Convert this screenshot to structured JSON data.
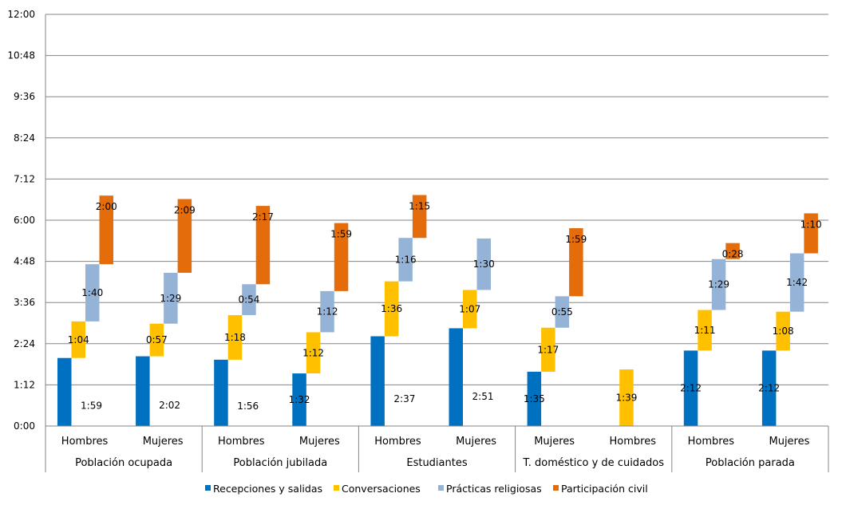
{
  "chart_data": {
    "type": "bar",
    "subtype": "floating-stacked (waterfall-style)",
    "title": "",
    "xlabel": "",
    "ylabel": "",
    "y_unit": "h:mm",
    "ylim_minutes": [
      0,
      720
    ],
    "y_ticks": [
      "0:00",
      "1:12",
      "2:24",
      "3:36",
      "4:48",
      "6:00",
      "7:12",
      "8:24",
      "9:36",
      "10:48",
      "12:00"
    ],
    "grid": true,
    "legend_position": "bottom",
    "groups": [
      {
        "label": "Población ocupada",
        "categories": [
          "Hombres",
          "Mujeres"
        ]
      },
      {
        "label": "Población jubilada",
        "categories": [
          "Hombres",
          "Mujeres"
        ]
      },
      {
        "label": "Estudiantes",
        "categories": [
          "Hombres",
          "Mujeres"
        ]
      },
      {
        "label": "T. doméstico y de cuidados",
        "categories": [
          "Mujeres",
          "Hombres"
        ]
      },
      {
        "label": "Población parada",
        "categories": [
          "Hombres",
          "Mujeres"
        ]
      }
    ],
    "series": [
      {
        "name": "Recepciones y salidas",
        "color": "#0070C0",
        "values": [
          "1:59",
          "2:02",
          "1:56",
          "1:32",
          "2:37",
          "2:51",
          "1:35",
          null,
          "2:12",
          "2:12"
        ]
      },
      {
        "name": "Conversaciones",
        "color": "#FFC000",
        "values": [
          "1:04",
          "0:57",
          "1:18",
          "1:12",
          "1:36",
          "1:07",
          "1:17",
          "1:39",
          "1:11",
          "1:08"
        ]
      },
      {
        "name": "Prácticas religiosas",
        "color": "#95B3D7",
        "values": [
          "1:40",
          "1:29",
          "0:54",
          "1:12",
          "1:16",
          "1:30",
          "0:55",
          null,
          "1:29",
          "1:42"
        ]
      },
      {
        "name": "Participación civil",
        "color": "#E46C0A",
        "values": [
          "2:00",
          "2:09",
          "2:17",
          "1:59",
          "1:15",
          null,
          "1:59",
          null,
          "0:28",
          "1:10"
        ]
      }
    ]
  }
}
